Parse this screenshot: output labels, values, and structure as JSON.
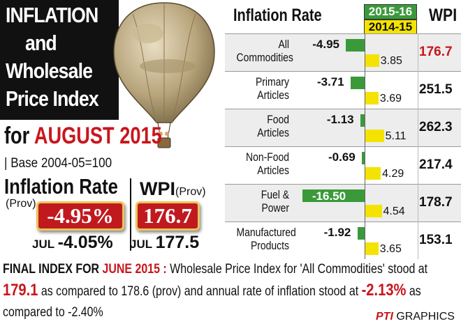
{
  "headline": {
    "lines": [
      "INFLATION",
      "and",
      "Wholesale",
      "Price Index"
    ],
    "for_prefix": "for",
    "month": "AUGUST 2015",
    "base": "| Base 2004-05=100"
  },
  "summary": {
    "inflation_label": "Inflation Rate",
    "inflation_prov": "(Prov)",
    "inflation_value": "-4.95%",
    "wpi_label": "WPI",
    "wpi_prov": "(Prov)",
    "wpi_value": "176.7",
    "jul_label": "JUL",
    "jul_inflation": "-4.05%",
    "jul_wpi": "177.5"
  },
  "footnote": {
    "lead": "FINAL INDEX FOR ",
    "lead_month": "JUNE 2015 :",
    "text1": " Wholesale Price Index for 'All Commodities' stood at",
    "value1": "179.1",
    "text2": " as compared to 178.6 (prov) and annual rate of inflation stood at ",
    "value2": "-2.13%",
    "text3": " as",
    "text4": "compared to -2.40%"
  },
  "credit": {
    "agency": "PTI",
    "label": "GRAPHICS"
  },
  "table": {
    "header_title": "Inflation Rate",
    "header_wpi": "WPI"
  },
  "colors": {
    "green": "#3a9a3a",
    "yellow": "#f4e300",
    "red": "#c8161d"
  },
  "chart_data": {
    "type": "bar",
    "title": "Inflation Rate",
    "categories": [
      [
        "All",
        "Commodities"
      ],
      [
        "Primary",
        "Articles"
      ],
      [
        "Food",
        "Articles"
      ],
      [
        "Non-Food",
        "Articles"
      ],
      [
        "Fuel &",
        "Power"
      ],
      [
        "Manufactured",
        "Products"
      ]
    ],
    "series": [
      {
        "name": "2015-16",
        "values": [
          -4.95,
          -3.71,
          -1.13,
          -0.69,
          -16.5,
          -1.92
        ],
        "labels": [
          "-4.95",
          "-3.71",
          "-1.13",
          "-0.69",
          "-16.50",
          "-1.92"
        ],
        "color": "#3a9a3a"
      },
      {
        "name": "2014-15",
        "values": [
          3.85,
          3.69,
          5.11,
          4.29,
          4.54,
          3.65
        ],
        "labels": [
          "3.85",
          "3.69",
          "5.11",
          "4.29",
          "4.54",
          "3.65"
        ],
        "color": "#f4e300"
      }
    ],
    "wpi_column": {
      "label": "WPI",
      "values": [
        "176.7",
        "251.5",
        "262.3",
        "217.4",
        "178.7",
        "153.1"
      ],
      "highlight_first_color": "#c8161d"
    }
  }
}
